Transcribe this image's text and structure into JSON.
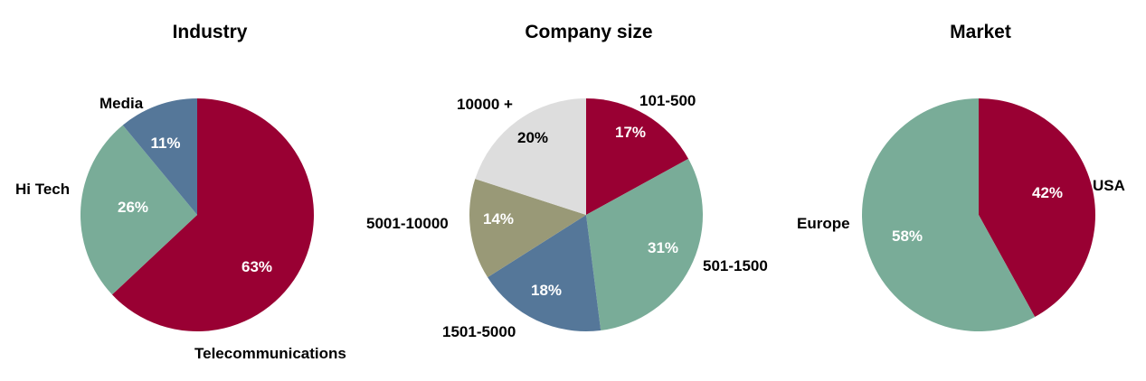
{
  "chart_data": [
    {
      "type": "pie",
      "title": "Industry",
      "slices": [
        {
          "label": "Telecommunications",
          "value": 63,
          "value_label": "63%",
          "color": "#990033"
        },
        {
          "label": "Hi Tech",
          "value": 26,
          "value_label": "26%",
          "color": "#79AC98"
        },
        {
          "label": "Media",
          "value": 11,
          "value_label": "11%",
          "color": "#557799"
        }
      ]
    },
    {
      "type": "pie",
      "title": "Company size",
      "slices": [
        {
          "label": "101-500",
          "value": 17,
          "value_label": "17%",
          "color": "#990033"
        },
        {
          "label": "501-1500",
          "value": 31,
          "value_label": "31%",
          "color": "#79AC98"
        },
        {
          "label": "1501-5000",
          "value": 18,
          "value_label": "18%",
          "color": "#557799"
        },
        {
          "label": "5001-10000",
          "value": 14,
          "value_label": "14%",
          "color": "#999977"
        },
        {
          "label": "10000 +",
          "value": 20,
          "value_label": "20%",
          "color": "#DDDDDD"
        }
      ]
    },
    {
      "type": "pie",
      "title": "Market",
      "slices": [
        {
          "label": "USA",
          "value": 42,
          "value_label": "42%",
          "color": "#990033"
        },
        {
          "label": "Europe",
          "value": 58,
          "value_label": "58%",
          "color": "#79AC98"
        }
      ]
    }
  ]
}
